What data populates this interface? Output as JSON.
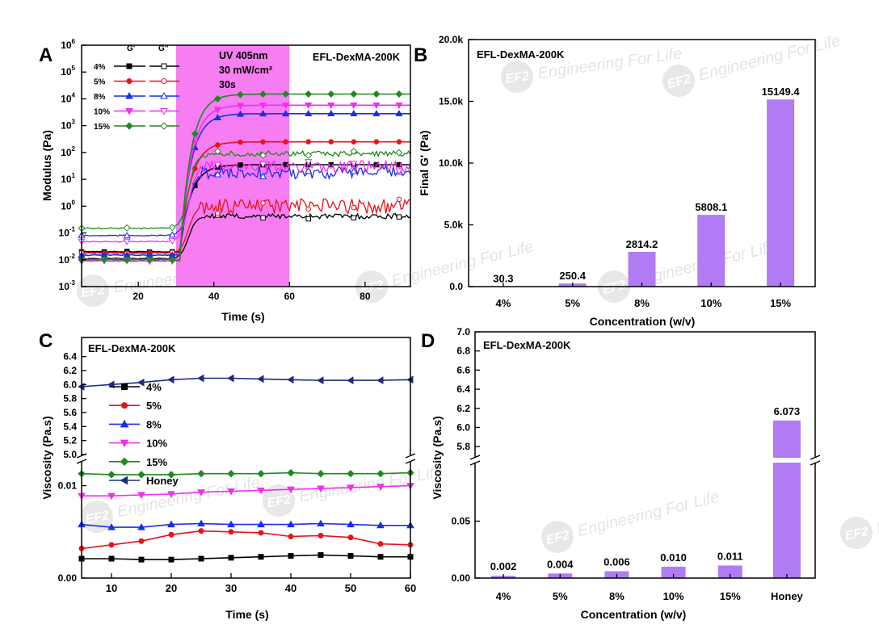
{
  "figure": {
    "colors": {
      "black": "#000000",
      "red": "#e8131b",
      "blue": "#1a2fe6",
      "magenta": "#f12ef2",
      "green": "#1f8a1f",
      "teal": "#0f7a7a",
      "navy": "#1c2b84",
      "purple": "#b07bf3",
      "uv": "#f77df2"
    }
  },
  "watermark": {
    "logo": "EF2",
    "text": "Engineering For Life"
  },
  "chart_data": [
    {
      "id": "A",
      "panel_label": "A",
      "type": "line",
      "yscale": "log",
      "title": "EFL-DexMA-200K",
      "xlabel": "Time (s)",
      "ylabel": "Modulus (Pa)",
      "xlim": [
        5,
        92
      ],
      "xticks": [
        20,
        40,
        60,
        80
      ],
      "ylim_exp": [
        -3,
        6
      ],
      "yticks_exp": [
        -3,
        -2,
        -1,
        0,
        1,
        2,
        3,
        4,
        5,
        6
      ],
      "uv_window": [
        30,
        60
      ],
      "uv_lines": [
        "UV 405nm",
        "30 mW/cm²",
        "30s"
      ],
      "legend_headers": [
        "G'",
        "G''"
      ],
      "series": [
        {
          "name": "4%",
          "color": "#000000",
          "gp_pre": 0.02,
          "gp_post": 35,
          "gpp_pre": 0.011,
          "gpp_post": 0.42,
          "gpp_noise": 0.1
        },
        {
          "name": "5%",
          "color": "#e8131b",
          "gp_pre": 0.018,
          "gp_post": 250,
          "gpp_pre": 0.018,
          "gpp_post": 1.0,
          "gpp_noise": 0.28
        },
        {
          "name": "8%",
          "color": "#1a2fe6",
          "gp_pre": 0.015,
          "gp_post": 2800,
          "gpp_pre": 0.08,
          "gpp_post": 18,
          "gpp_noise": 0.25
        },
        {
          "name": "10%",
          "color": "#f12ef2",
          "gp_pre": 0.009,
          "gp_post": 5800,
          "gpp_pre": 0.048,
          "gpp_post": 30,
          "gpp_noise": 0.22
        },
        {
          "name": "15%",
          "color": "#1f8a1f",
          "gp_pre": 0.01,
          "gp_post": 15100,
          "gpp_pre": 0.15,
          "gpp_post": 90,
          "gpp_noise": 0.1
        }
      ]
    },
    {
      "id": "B",
      "panel_label": "B",
      "type": "bar",
      "title": "EFL-DexMA-200K",
      "xlabel": "Concentration (w/v)",
      "ylabel": "Final G' (Pa)",
      "ylim": [
        0,
        20000
      ],
      "yticks": [
        0,
        5000,
        10000,
        15000,
        20000
      ],
      "ytick_labels": [
        "0.0",
        "5.0k",
        "10.0k",
        "15.0k",
        "20.0k"
      ],
      "categories": [
        "4%",
        "5%",
        "8%",
        "10%",
        "15%"
      ],
      "values": [
        30.3,
        250.4,
        2814.2,
        5808.1,
        15149.4
      ],
      "value_labels": [
        "30.3",
        "250.4",
        "2814.2",
        "5808.1",
        "15149.4"
      ]
    },
    {
      "id": "C",
      "panel_label": "C",
      "type": "line",
      "title": "EFL-DexMA-200K",
      "xlabel": "Time (s)",
      "ylabel": "Viscosity (Pa.s)",
      "xlim": [
        5,
        60
      ],
      "xticks": [
        10,
        20,
        30,
        40,
        50,
        60
      ],
      "lower_ylim": [
        0,
        0.0125
      ],
      "lower_yticks": [
        0.0,
        0.01
      ],
      "lower_ytick_labels": [
        "0.00",
        "0.01"
      ],
      "upper_ylim": [
        5.0,
        6.5
      ],
      "upper_yticks": [
        5.0,
        5.2,
        5.4,
        5.6,
        5.8,
        6.0,
        6.2,
        6.4
      ],
      "upper_ytick_labels": [
        "5.0",
        "5.2",
        "5.4",
        "5.6",
        "5.8",
        "6.0",
        "6.2",
        "6.4"
      ],
      "x": [
        5,
        10,
        15,
        20,
        25,
        30,
        35,
        40,
        45,
        50,
        55,
        60
      ],
      "series": [
        {
          "name": "4%",
          "color": "#000000",
          "marker": "square",
          "axis": "lower",
          "values": [
            0.0021,
            0.0021,
            0.002,
            0.002,
            0.0021,
            0.0022,
            0.0023,
            0.0024,
            0.0025,
            0.0024,
            0.0023,
            0.0023
          ]
        },
        {
          "name": "5%",
          "color": "#e8131b",
          "marker": "circle",
          "axis": "lower",
          "values": [
            0.0032,
            0.0036,
            0.004,
            0.0047,
            0.0051,
            0.005,
            0.0049,
            0.0045,
            0.0046,
            0.0044,
            0.0037,
            0.0036
          ]
        },
        {
          "name": "8%",
          "color": "#1a2fe6",
          "marker": "triangle-up",
          "axis": "lower",
          "values": [
            0.0058,
            0.0055,
            0.0055,
            0.0058,
            0.0059,
            0.0058,
            0.0058,
            0.0058,
            0.0059,
            0.0058,
            0.0057,
            0.0057
          ]
        },
        {
          "name": "10%",
          "color": "#f12ef2",
          "marker": "triangle-down",
          "axis": "lower",
          "values": [
            0.0089,
            0.0089,
            0.009,
            0.0091,
            0.0093,
            0.0094,
            0.0095,
            0.0096,
            0.0097,
            0.0098,
            0.0099,
            0.01
          ]
        },
        {
          "name": "15%",
          "color": "#1f8a1f",
          "marker": "diamond",
          "axis": "lower",
          "values": [
            0.0113,
            0.0112,
            0.0112,
            0.0112,
            0.0113,
            0.0113,
            0.0113,
            0.0114,
            0.0113,
            0.0113,
            0.0113,
            0.0114
          ]
        },
        {
          "name": "Honey",
          "color": "#1c2b84",
          "marker": "triangle-left",
          "axis": "upper",
          "values": [
            5.97,
            6.0,
            6.03,
            6.07,
            6.09,
            6.09,
            6.08,
            6.07,
            6.06,
            6.06,
            6.06,
            6.07
          ]
        }
      ]
    },
    {
      "id": "D",
      "panel_label": "D",
      "type": "bar",
      "title": "EFL-DexMA-200K",
      "xlabel": "Concentration (w/v)",
      "ylabel": "Viscosity (Pa.s)",
      "lower_ylim": [
        0,
        0.1
      ],
      "lower_yticks": [
        0,
        0.05
      ],
      "lower_ytick_labels": [
        "0.00",
        "0.05"
      ],
      "upper_ylim": [
        5.7,
        7.0
      ],
      "upper_yticks": [
        5.8,
        6.0,
        6.2,
        6.4,
        6.6,
        6.8,
        7.0
      ],
      "upper_ytick_labels": [
        "5.8",
        "6.0",
        "6.2",
        "6.4",
        "6.6",
        "6.8",
        "7.0"
      ],
      "categories": [
        "4%",
        "5%",
        "8%",
        "10%",
        "15%",
        "Honey"
      ],
      "values": [
        0.002,
        0.004,
        0.006,
        0.01,
        0.011,
        6.073
      ],
      "value_labels": [
        "0.002",
        "0.004",
        "0.006",
        "0.010",
        "0.011",
        "6.073"
      ]
    }
  ]
}
